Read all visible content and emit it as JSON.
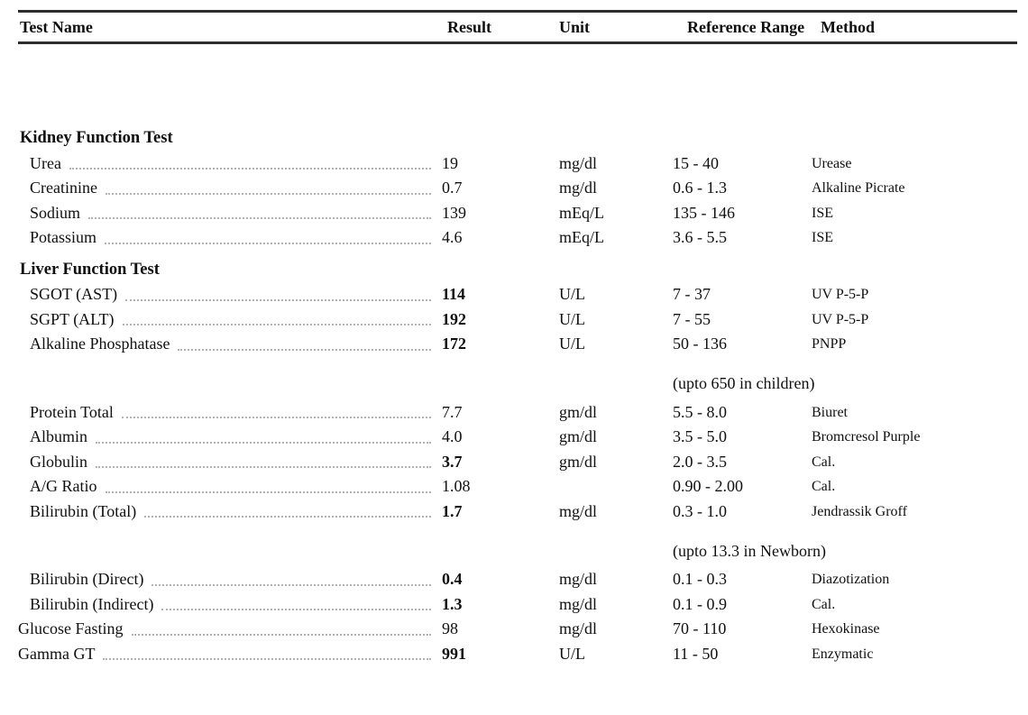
{
  "table": {
    "columns": [
      "Test Name",
      "Result",
      "Unit",
      "Reference Range",
      "Method"
    ],
    "rows": [
      {
        "type": "section",
        "name": "Kidney Function Test"
      },
      {
        "type": "test",
        "name": "Urea",
        "result": "19",
        "result_bold": false,
        "unit": "mg/dl",
        "range": "15 - 40",
        "method": "Urease"
      },
      {
        "type": "test",
        "name": "Creatinine",
        "result": "0.7",
        "result_bold": false,
        "unit": "mg/dl",
        "range": "0.6 - 1.3",
        "method": "Alkaline Picrate"
      },
      {
        "type": "test",
        "name": "Sodium",
        "result": "139",
        "result_bold": false,
        "unit": "mEq/L",
        "range": "135 - 146",
        "method": "ISE"
      },
      {
        "type": "test",
        "name": "Potassium",
        "result": "4.6",
        "result_bold": false,
        "unit": "mEq/L",
        "range": "3.6 - 5.5",
        "method": "ISE"
      },
      {
        "type": "section",
        "name": "Liver Function Test"
      },
      {
        "type": "test",
        "name": "SGOT (AST)",
        "result": "114",
        "result_bold": true,
        "unit": "U/L",
        "range": "7 - 37",
        "method": "UV P-5-P"
      },
      {
        "type": "test",
        "name": "SGPT (ALT)",
        "result": "192",
        "result_bold": true,
        "unit": "U/L",
        "range": "7 - 55",
        "method": "UV P-5-P"
      },
      {
        "type": "test",
        "name": "Alkaline Phosphatase",
        "result": "172",
        "result_bold": true,
        "unit": "U/L",
        "range": "50 - 136",
        "method": "PNPP"
      },
      {
        "type": "note",
        "range": "(upto 650 in children)"
      },
      {
        "type": "test",
        "name": "Protein Total",
        "result": "7.7",
        "result_bold": false,
        "unit": "gm/dl",
        "range": "5.5 - 8.0",
        "method": "Biuret"
      },
      {
        "type": "test",
        "name": "Albumin",
        "result": "4.0",
        "result_bold": false,
        "unit": "gm/dl",
        "range": "3.5 - 5.0",
        "method": "Bromcresol Purple"
      },
      {
        "type": "test",
        "name": "Globulin",
        "result": "3.7",
        "result_bold": true,
        "unit": "gm/dl",
        "range": "2.0 - 3.5",
        "method": "Cal."
      },
      {
        "type": "test",
        "name": "A/G Ratio",
        "result": "1.08",
        "result_bold": false,
        "unit": "",
        "range": "0.90 - 2.00",
        "method": "Cal."
      },
      {
        "type": "test",
        "name": "Bilirubin (Total)",
        "result": "1.7",
        "result_bold": true,
        "unit": "mg/dl",
        "range": "0.3 - 1.0",
        "method": "Jendrassik Groff"
      },
      {
        "type": "note",
        "range": "(upto 13.3 in Newborn)"
      },
      {
        "type": "test",
        "name": "Bilirubin (Direct)",
        "result": "0.4",
        "result_bold": true,
        "unit": "mg/dl",
        "range": "0.1 - 0.3",
        "method": "Diazotization"
      },
      {
        "type": "test",
        "name": "Bilirubin (Indirect)",
        "result": "1.3",
        "result_bold": true,
        "unit": "mg/dl",
        "range": "0.1 - 0.9",
        "method": "Cal."
      },
      {
        "type": "test",
        "indent": "flush",
        "name": "Glucose Fasting",
        "result": "98",
        "result_bold": false,
        "unit": "mg/dl",
        "range": "70 - 110",
        "method": "Hexokinase"
      },
      {
        "type": "test",
        "indent": "flush",
        "name": "Gamma GT",
        "result": "991",
        "result_bold": true,
        "unit": "U/L",
        "range": "11 - 50",
        "method": "Enzymatic"
      }
    ]
  }
}
